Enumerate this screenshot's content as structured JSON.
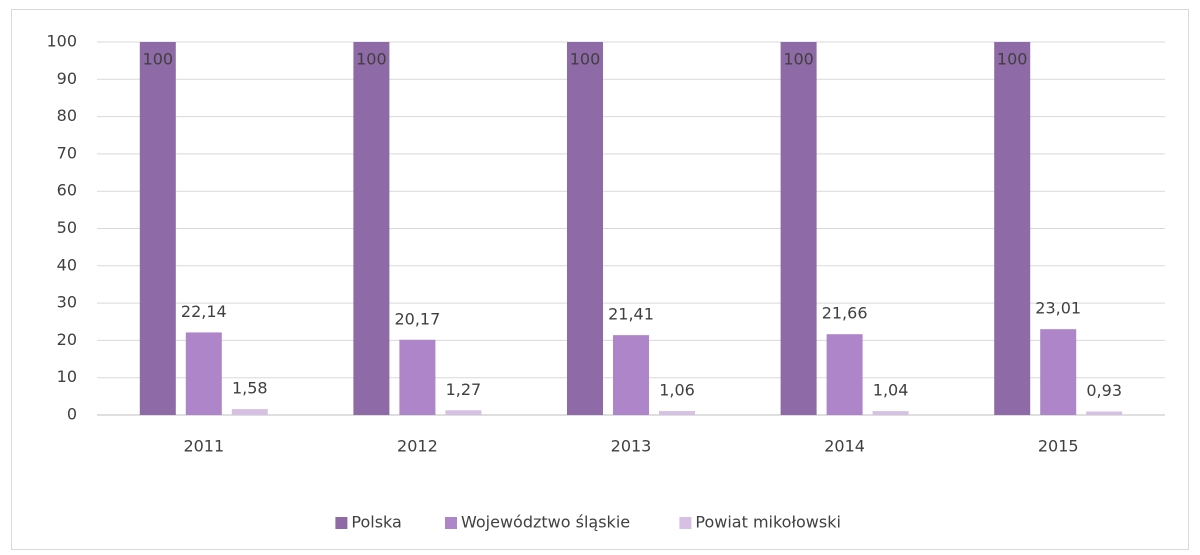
{
  "chart_data": {
    "type": "bar",
    "categories": [
      "2011",
      "2012",
      "2013",
      "2014",
      "2015"
    ],
    "series": [
      {
        "name": "Polska",
        "color": "#8e6aa6",
        "values": [
          100,
          100,
          100,
          100,
          100
        ]
      },
      {
        "name": "Województwo śląskie",
        "color": "#ae85c9",
        "values": [
          22.14,
          20.17,
          21.41,
          21.66,
          23.01
        ],
        "value_labels": [
          "22,14",
          "20,17",
          "21,41",
          "21,66",
          "23,01"
        ]
      },
      {
        "name": "Powiat mikołowski",
        "color": "#d6c0e4",
        "values": [
          1.58,
          1.27,
          1.06,
          1.04,
          0.93
        ],
        "value_labels": [
          "1,58",
          "1,27",
          "1,06",
          "1,04",
          "0,93"
        ]
      }
    ],
    "ylim": [
      0,
      100
    ],
    "yticks": [
      0,
      10,
      20,
      30,
      40,
      50,
      60,
      70,
      80,
      90,
      100
    ],
    "grid": true,
    "legend": "bottom"
  }
}
